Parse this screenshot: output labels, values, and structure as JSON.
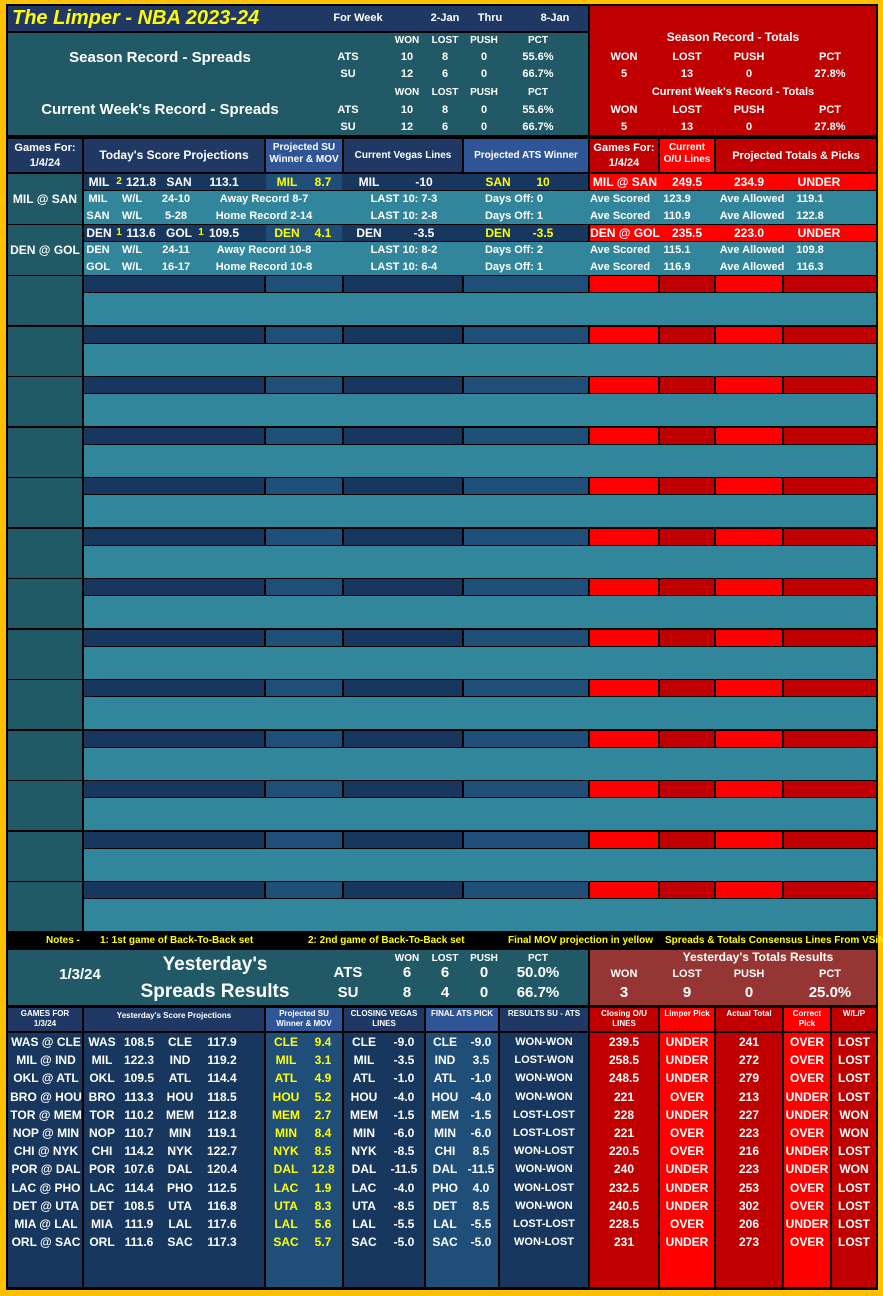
{
  "header": {
    "title": "The Limper - NBA 2023-24",
    "for_week": "For Week",
    "start": "2-Jan",
    "thru": "Thru",
    "end": "8-Jan"
  },
  "season_spreads": {
    "label": "Season Record - Spreads",
    "columns": [
      "WON",
      "LOST",
      "PUSH",
      "PCT"
    ],
    "rows": [
      [
        "ATS",
        "10",
        "8",
        "0",
        "55.6%"
      ],
      [
        "SU",
        "12",
        "6",
        "0",
        "66.7%"
      ]
    ]
  },
  "week_spreads": {
    "label": "Current Week's Record - Spreads",
    "columns": [
      "WON",
      "LOST",
      "PUSH",
      "PCT"
    ],
    "rows": [
      [
        "ATS",
        "10",
        "8",
        "0",
        "55.6%"
      ],
      [
        "SU",
        "12",
        "6",
        "0",
        "66.7%"
      ]
    ]
  },
  "season_totals": {
    "label": "Season Record - Totals",
    "columns": [
      "WON",
      "LOST",
      "PUSH",
      "PCT"
    ],
    "values": [
      "5",
      "13",
      "0",
      "27.8%"
    ]
  },
  "week_totals": {
    "label": "Current Week's Record - Totals",
    "columns": [
      "WON",
      "LOST",
      "PUSH",
      "PCT"
    ],
    "values": [
      "5",
      "13",
      "0",
      "27.8%"
    ]
  },
  "today": {
    "headers": {
      "games_for": "Games For:",
      "date": "1/4/24",
      "score_proj": "Today's Score Projections",
      "su": "Projected SU Winner & MOV",
      "vegas": "Current Vegas Lines",
      "ats": "Projected ATS Winner",
      "games_for_2": "Games For:",
      "date_2": "1/4/24",
      "ou": "Current O/U Lines",
      "totals": "Projected Totals & Picks"
    },
    "games": [
      {
        "label": "MIL @ SAN",
        "main": {
          "away": "MIL",
          "away_b2b": "2",
          "away_score": "121.8",
          "home": "SAN",
          "home_score": "113.1",
          "su_team": "MIL",
          "mov": "8.7",
          "line_team": "MIL",
          "line": "-10",
          "ats_team": "SAN",
          "ats": "10",
          "matchup": "MIL @ SAN",
          "ou": "249.5",
          "proj_total": "234.9",
          "pick": "UNDER"
        },
        "teams": [
          [
            "MIL",
            "W/L",
            "24-10",
            "Away Record 8-7",
            "LAST 10: 7-3",
            "Days Off: 0",
            "Ave Scored",
            "123.9",
            "Ave Allowed",
            "119.1"
          ],
          [
            "SAN",
            "W/L",
            "5-28",
            "Home Record 2-14",
            "LAST 10: 2-8",
            "Days Off: 1",
            "Ave Scored",
            "110.9",
            "Ave Allowed",
            "122.8"
          ]
        ]
      },
      {
        "label": "DEN @ GOL",
        "main": {
          "away": "DEN",
          "away_b2b": "1",
          "away_score": "113.6",
          "home": "GOL",
          "home_b2b": "1",
          "home_score": "109.5",
          "su_team": "DEN",
          "mov": "4.1",
          "line_team": "DEN",
          "line": "-3.5",
          "ats_team": "DEN",
          "ats": "-3.5",
          "matchup": "DEN @ GOL",
          "ou": "235.5",
          "proj_total": "223.0",
          "pick": "UNDER"
        },
        "teams": [
          [
            "DEN",
            "W/L",
            "24-11",
            "Away Record 10-8",
            "LAST 10: 8-2",
            "Days Off: 2",
            "Ave Scored",
            "115.1",
            "Ave Allowed",
            "109.8"
          ],
          [
            "GOL",
            "W/L",
            "16-17",
            "Home Record 10-8",
            "LAST 10: 6-4",
            "Days Off: 1",
            "Ave Scored",
            "116.9",
            "Ave Allowed",
            "116.3"
          ]
        ]
      }
    ]
  },
  "notes": [
    "Notes -",
    "1: 1st game of Back-To-Back set",
    "2: 2nd game of Back-To-Back set",
    "Final MOV projection in yellow",
    "Spreads & Totals Consensus Lines From VSiN"
  ],
  "yesterday": {
    "date": "1/3/24",
    "title_1": "Yesterday's",
    "title_2": "Spreads Results",
    "columns": [
      "WON",
      "LOST",
      "PUSH",
      "PCT"
    ],
    "rows": [
      [
        "ATS",
        "6",
        "6",
        "0",
        "50.0%"
      ],
      [
        "SU",
        "8",
        "4",
        "0",
        "66.7%"
      ]
    ],
    "totals_title": "Yesterday's Totals Results",
    "totals_columns": [
      "WON",
      "LOST",
      "PUSH",
      "PCT"
    ],
    "totals_values": [
      "3",
      "9",
      "0",
      "25.0%"
    ]
  },
  "results": {
    "headers": [
      "GAMES FOR 1/3/24",
      "Yesterday's Score Projections",
      "Projected SU Winner & MOV",
      "CLOSING VEGAS LINES",
      "FINAL ATS PICK",
      "RESULTS SU - ATS",
      "Closing O/U LINES",
      "Limper Pick",
      "Actual Total",
      "Correct Pick",
      "W/L/P"
    ],
    "rows": [
      [
        "WAS @ CLE",
        "WAS",
        "108.5",
        "CLE",
        "117.9",
        "CLE",
        "9.4",
        "CLE",
        "-9.0",
        "CLE",
        "-9.0",
        "WON-WON",
        "239.5",
        "UNDER",
        "241",
        "OVER",
        "LOST"
      ],
      [
        "MIL @ IND",
        "MIL",
        "122.3",
        "IND",
        "119.2",
        "MIL",
        "3.1",
        "MIL",
        "-3.5",
        "IND",
        "3.5",
        "LOST-WON",
        "258.5",
        "UNDER",
        "272",
        "OVER",
        "LOST"
      ],
      [
        "OKL @ ATL",
        "OKL",
        "109.5",
        "ATL",
        "114.4",
        "ATL",
        "4.9",
        "ATL",
        "-1.0",
        "ATL",
        "-1.0",
        "WON-WON",
        "248.5",
        "UNDER",
        "279",
        "OVER",
        "LOST"
      ],
      [
        "BRO @ HOU",
        "BRO",
        "113.3",
        "HOU",
        "118.5",
        "HOU",
        "5.2",
        "HOU",
        "-4.0",
        "HOU",
        "-4.0",
        "WON-WON",
        "221",
        "OVER",
        "213",
        "UNDER",
        "LOST"
      ],
      [
        "TOR @ MEM",
        "TOR",
        "110.2",
        "MEM",
        "112.8",
        "MEM",
        "2.7",
        "MEM",
        "-1.5",
        "MEM",
        "-1.5",
        "LOST-LOST",
        "228",
        "UNDER",
        "227",
        "UNDER",
        "WON"
      ],
      [
        "NOP @ MIN",
        "NOP",
        "110.7",
        "MIN",
        "119.1",
        "MIN",
        "8.4",
        "MIN",
        "-6.0",
        "MIN",
        "-6.0",
        "LOST-LOST",
        "221",
        "OVER",
        "223",
        "OVER",
        "WON"
      ],
      [
        "CHI @ NYK",
        "CHI",
        "114.2",
        "NYK",
        "122.7",
        "NYK",
        "8.5",
        "NYK",
        "-8.5",
        "CHI",
        "8.5",
        "WON-LOST",
        "220.5",
        "OVER",
        "216",
        "UNDER",
        "LOST"
      ],
      [
        "POR @ DAL",
        "POR",
        "107.6",
        "DAL",
        "120.4",
        "DAL",
        "12.8",
        "DAL",
        "-11.5",
        "DAL",
        "-11.5",
        "WON-WON",
        "240",
        "UNDER",
        "223",
        "UNDER",
        "WON"
      ],
      [
        "LAC @ PHO",
        "LAC",
        "114.4",
        "PHO",
        "112.5",
        "LAC",
        "1.9",
        "LAC",
        "-4.0",
        "PHO",
        "4.0",
        "WON-LOST",
        "232.5",
        "UNDER",
        "253",
        "OVER",
        "LOST"
      ],
      [
        "DET @ UTA",
        "DET",
        "108.5",
        "UTA",
        "116.8",
        "UTA",
        "8.3",
        "UTA",
        "-8.5",
        "DET",
        "8.5",
        "WON-WON",
        "240.5",
        "UNDER",
        "302",
        "OVER",
        "LOST"
      ],
      [
        "MIA @ LAL",
        "MIA",
        "111.9",
        "LAL",
        "117.6",
        "LAL",
        "5.6",
        "LAL",
        "-5.5",
        "LAL",
        "-5.5",
        "LOST-LOST",
        "228.5",
        "OVER",
        "206",
        "UNDER",
        "LOST"
      ],
      [
        "ORL @ SAC",
        "ORL",
        "111.6",
        "SAC",
        "117.3",
        "SAC",
        "5.7",
        "SAC",
        "-5.0",
        "SAC",
        "-5.0",
        "WON-LOST",
        "231",
        "UNDER",
        "273",
        "OVER",
        "LOST"
      ]
    ]
  }
}
